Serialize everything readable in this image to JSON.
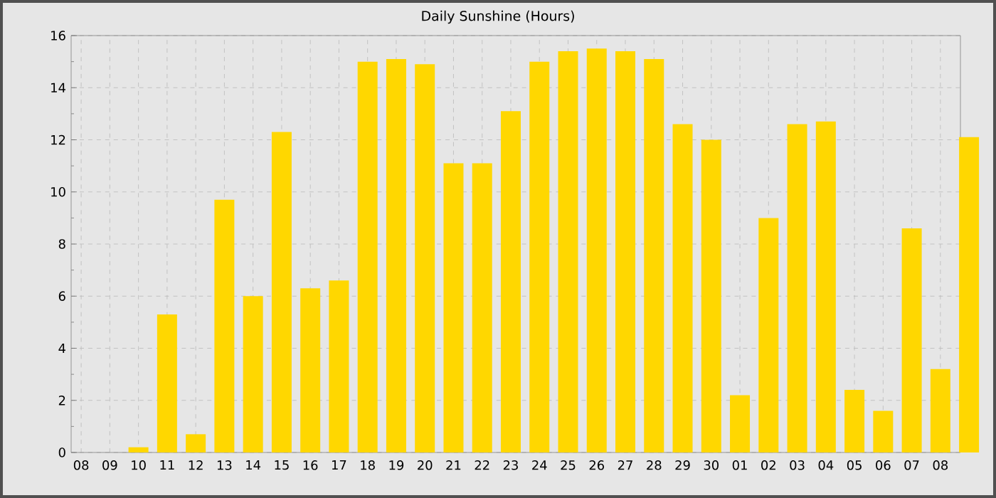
{
  "chart_data": {
    "type": "bar",
    "title": "Daily Sunshine (Hours)",
    "categories": [
      "08",
      "09",
      "10",
      "11",
      "12",
      "13",
      "14",
      "15",
      "16",
      "17",
      "18",
      "19",
      "20",
      "21",
      "22",
      "23",
      "24",
      "25",
      "26",
      "27",
      "28",
      "29",
      "30",
      "01",
      "02",
      "03",
      "04",
      "05",
      "06",
      "07",
      "08",
      null
    ],
    "values": [
      0,
      0,
      0.2,
      5.3,
      0.7,
      9.7,
      6.0,
      12.3,
      6.3,
      6.6,
      15.0,
      15.1,
      14.9,
      11.1,
      11.1,
      13.1,
      15.0,
      15.4,
      15.5,
      15.4,
      15.1,
      12.6,
      12.0,
      2.2,
      9.0,
      12.6,
      12.7,
      2.4,
      1.6,
      8.6,
      3.2,
      12.1
    ],
    "color": "#ffd700",
    "ylim": [
      0,
      16
    ],
    "yticks": [
      0,
      2,
      4,
      6,
      8,
      10,
      12,
      14,
      16
    ],
    "grid": true
  }
}
